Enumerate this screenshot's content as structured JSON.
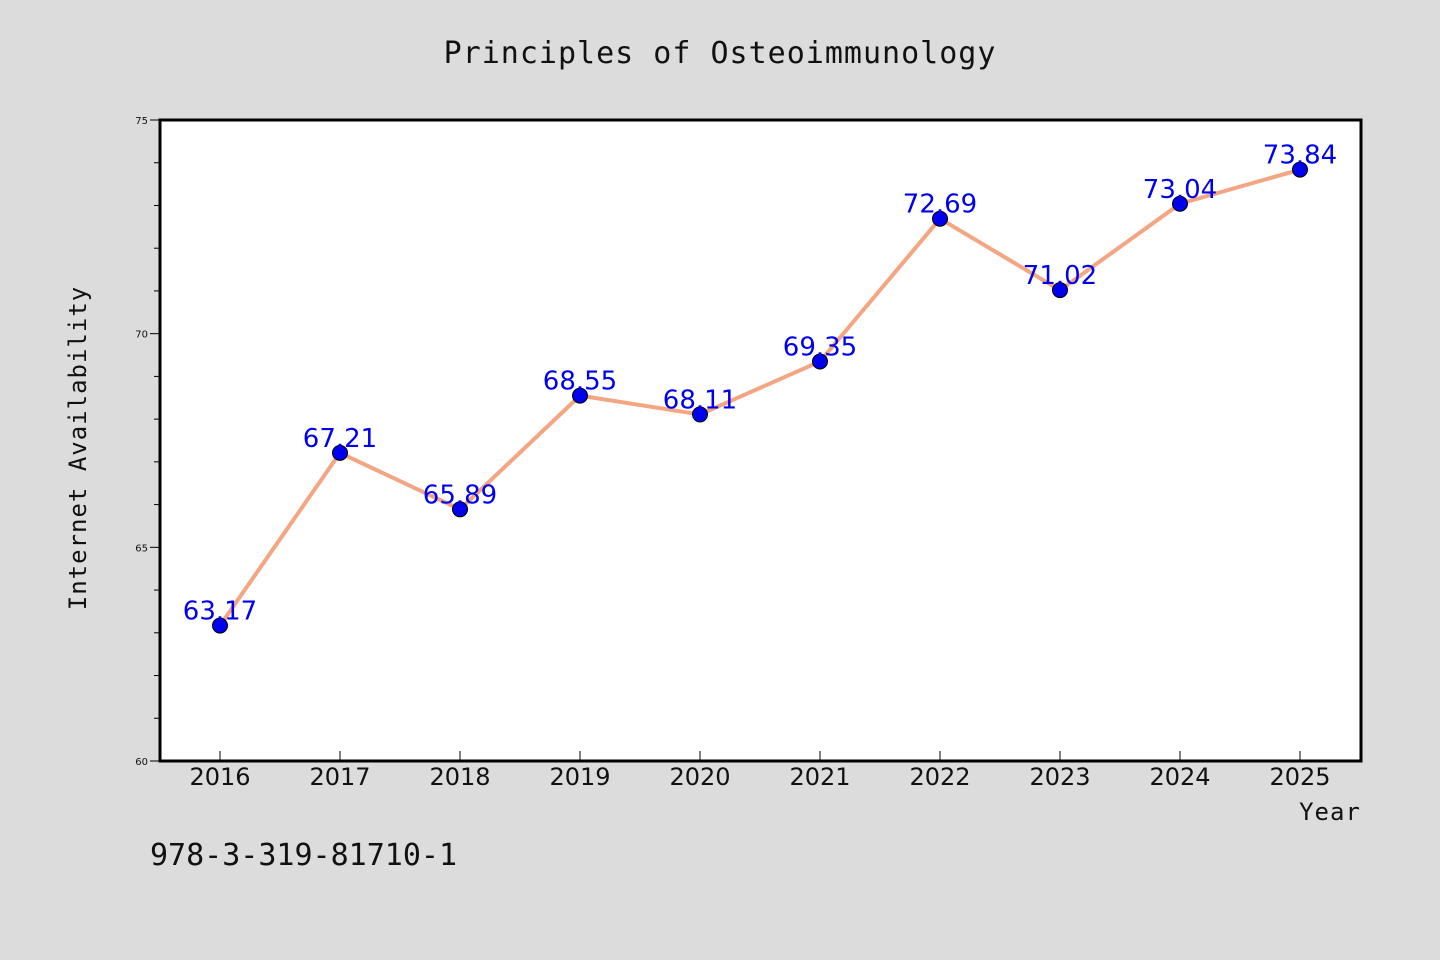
{
  "chart_data": {
    "type": "line",
    "title": "Principles of Osteoimmunology",
    "xlabel": "Year",
    "ylabel": "Internet Availability",
    "x": [
      "2016",
      "2017",
      "2018",
      "2019",
      "2020",
      "2021",
      "2022",
      "2023",
      "2024",
      "2025"
    ],
    "series": [
      {
        "values": [
          63.17,
          67.21,
          65.89,
          68.55,
          68.11,
          69.35,
          72.69,
          71.02,
          73.04,
          73.84
        ],
        "labels": [
          "63.17",
          "67.21",
          "65.89",
          "68.55",
          "68.11",
          "69.35",
          "72.69",
          "71.02",
          "73.04",
          "73.84"
        ],
        "line_color": "#f4a582",
        "marker_color": "#0000ee"
      }
    ],
    "ylim": [
      60,
      75
    ],
    "yticks": [
      "60",
      "65",
      "70",
      "75"
    ],
    "grid": false,
    "legend": "none"
  },
  "annotation": "978-3-319-81710-1",
  "colors": {
    "background": "#dcdcdc",
    "plot_area": "#ffffff",
    "label_text": "#0000ee"
  }
}
